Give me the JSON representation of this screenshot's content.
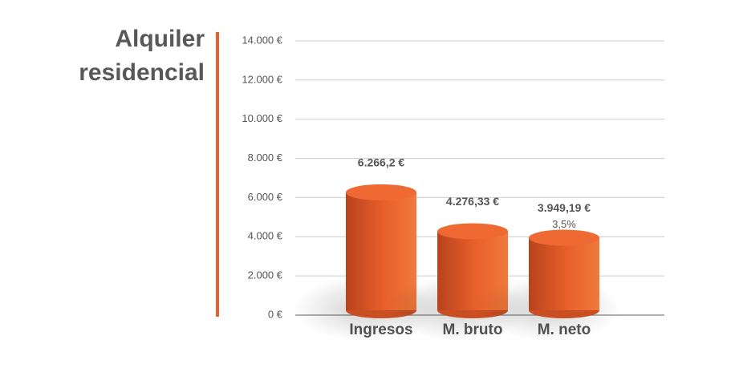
{
  "chart_data": {
    "type": "bar",
    "title": [
      "Alquiler",
      "residencial"
    ],
    "categories": [
      "Ingresos",
      "M. bruto",
      "M. neto"
    ],
    "values": [
      6266.2,
      4276.33,
      3949.19
    ],
    "value_labels": [
      "6.266,2 €",
      "4.276,33 €",
      "3.949,19 €"
    ],
    "annotations": [
      {
        "category": "M. neto",
        "text": "3,5%"
      }
    ],
    "color": "#e8602c",
    "ylim": [
      0,
      14000
    ],
    "yticks": [
      {
        "value": 0,
        "label": "0 €"
      },
      {
        "value": 2000,
        "label": "2.000 €"
      },
      {
        "value": 4000,
        "label": "4.000 €"
      },
      {
        "value": 6000,
        "label": "6.000 €"
      },
      {
        "value": 8000,
        "label": "8.000 €"
      },
      {
        "value": 10000,
        "label": "10.000 €"
      },
      {
        "value": 12000,
        "label": "12.000 €"
      },
      {
        "value": 14000,
        "label": "14.000 €"
      }
    ],
    "grid": true
  }
}
